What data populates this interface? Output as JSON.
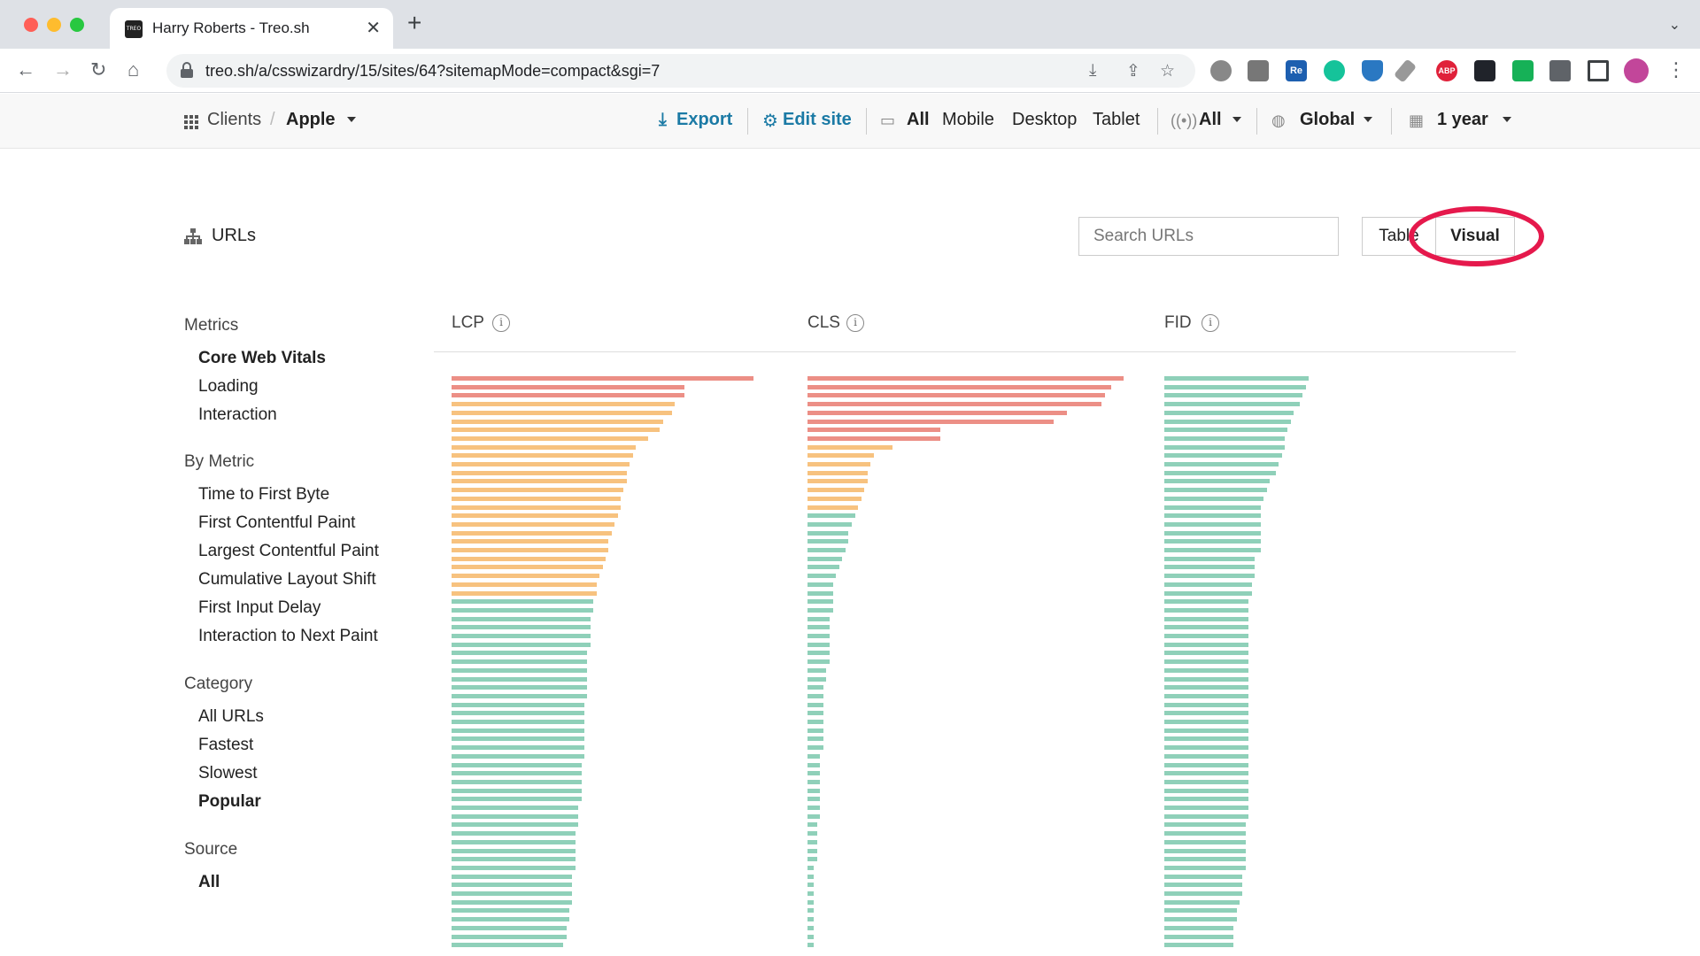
{
  "browser": {
    "tab_title": "Harry Roberts - Treo.sh",
    "favicon_text": "TREO",
    "url": "treo.sh/a/csswizardry/15/sites/64?sitemapMode=compact&sgi=7",
    "extensions": [
      "settings-ext",
      "camera-ext",
      "re-ext",
      "grammarly-ext",
      "shield-ext",
      "pin-ext",
      "adblock-ext",
      "react-ext",
      "green-ext",
      "puzzle-ext",
      "sidepanel-ext",
      "avatar"
    ],
    "extension_labels": {
      "re": "Re",
      "abp": "ABP"
    }
  },
  "header": {
    "clients": "Clients",
    "separator": "/",
    "client_name": "Apple",
    "export": "Export",
    "edit_site": "Edit site",
    "devices": [
      "All",
      "Mobile",
      "Desktop",
      "Tablet"
    ],
    "connection": "All",
    "region": "Global",
    "period": "1 year"
  },
  "urls": {
    "title": "URLs",
    "search_placeholder": "Search URLs",
    "toggle": [
      "Table",
      "Visual"
    ],
    "active_toggle": "Visual"
  },
  "sidebar": {
    "groups": [
      {
        "heading": "Metrics",
        "items": [
          {
            "label": "Core Web Vitals",
            "active": true
          },
          {
            "label": "Loading"
          },
          {
            "label": "Interaction"
          }
        ]
      },
      {
        "heading": "By Metric",
        "items": [
          {
            "label": "Time to First Byte"
          },
          {
            "label": "First Contentful Paint"
          },
          {
            "label": "Largest Contentful Paint"
          },
          {
            "label": "Cumulative Layout Shift"
          },
          {
            "label": "First Input Delay"
          },
          {
            "label": "Interaction to Next Paint"
          }
        ]
      },
      {
        "heading": "Category",
        "items": [
          {
            "label": "All URLs"
          },
          {
            "label": "Fastest"
          },
          {
            "label": "Slowest"
          },
          {
            "label": "Popular",
            "active": true
          }
        ]
      },
      {
        "heading": "Source",
        "items": [
          {
            "label": "All",
            "active": true
          }
        ]
      }
    ]
  },
  "colors": {
    "poor": "#ec8f86",
    "needs_improvement": "#f7c27f",
    "good": "#8fd0b9",
    "link": "#1b7aa5",
    "highlight": "#e5194c"
  },
  "chart_data": [
    {
      "type": "bar",
      "title": "LCP",
      "orientation": "horizontal",
      "scale": "relative",
      "statuses": [
        "poor",
        "poor",
        "poor",
        "ni",
        "ni",
        "ni",
        "ni",
        "ni",
        "ni",
        "ni",
        "ni",
        "ni",
        "ni",
        "ni",
        "ni",
        "ni",
        "ni",
        "ni",
        "ni",
        "ni",
        "ni",
        "ni",
        "ni",
        "ni",
        "ni",
        "ni",
        "good",
        "good",
        "good",
        "good",
        "good",
        "good",
        "good",
        "good",
        "good",
        "good",
        "good",
        "good",
        "good",
        "good",
        "good",
        "good",
        "good",
        "good",
        "good",
        "good",
        "good",
        "good",
        "good",
        "good",
        "good",
        "good",
        "good",
        "good",
        "good",
        "good",
        "good",
        "good",
        "good",
        "good",
        "good",
        "good",
        "good",
        "good",
        "good",
        "good",
        "good"
      ],
      "values": [
        100,
        77,
        77,
        74,
        73,
        70,
        69,
        65,
        61,
        60,
        59,
        58,
        58,
        57,
        56,
        56,
        55,
        54,
        53,
        52,
        52,
        51,
        50,
        49,
        48,
        48,
        47,
        47,
        46,
        46,
        46,
        46,
        45,
        45,
        45,
        45,
        45,
        45,
        44,
        44,
        44,
        44,
        44,
        44,
        44,
        43,
        43,
        43,
        43,
        43,
        42,
        42,
        42,
        41,
        41,
        41,
        41,
        41,
        40,
        40,
        40,
        40,
        39,
        39,
        38,
        38,
        37
      ]
    },
    {
      "type": "bar",
      "title": "CLS",
      "orientation": "horizontal",
      "scale": "relative",
      "statuses": [
        "poor",
        "poor",
        "poor",
        "poor",
        "poor",
        "poor",
        "poor",
        "poor",
        "ni",
        "ni",
        "ni",
        "ni",
        "ni",
        "ni",
        "ni",
        "ni",
        "good",
        "good",
        "good",
        "good",
        "good",
        "good",
        "good",
        "good",
        "good",
        "good",
        "good",
        "good",
        "good",
        "good",
        "good",
        "good",
        "good",
        "good",
        "good",
        "good",
        "good",
        "good",
        "good",
        "good",
        "good",
        "good",
        "good",
        "good",
        "good",
        "good",
        "good",
        "good",
        "good",
        "good",
        "good",
        "good",
        "good",
        "good",
        "good",
        "good",
        "good",
        "good",
        "good",
        "good",
        "good",
        "good",
        "good",
        "good",
        "good",
        "good",
        "good"
      ],
      "values": [
        100,
        96,
        94,
        93,
        82,
        78,
        42,
        42,
        27,
        21,
        20,
        19,
        19,
        18,
        17,
        16,
        15,
        14,
        13,
        13,
        12,
        11,
        10,
        9,
        8,
        8,
        8,
        8,
        7,
        7,
        7,
        7,
        7,
        7,
        6,
        6,
        5,
        5,
        5,
        5,
        5,
        5,
        5,
        5,
        4,
        4,
        4,
        4,
        4,
        4,
        4,
        4,
        3,
        3,
        3,
        3,
        3,
        2,
        2,
        2,
        2,
        2,
        2,
        2,
        2,
        2,
        2
      ]
    },
    {
      "type": "bar",
      "title": "FID",
      "orientation": "horizontal",
      "scale": "relative",
      "statuses": [
        "good",
        "good",
        "good",
        "good",
        "good",
        "good",
        "good",
        "good",
        "good",
        "good",
        "good",
        "good",
        "good",
        "good",
        "good",
        "good",
        "good",
        "good",
        "good",
        "good",
        "good",
        "good",
        "good",
        "good",
        "good",
        "good",
        "good",
        "good",
        "good",
        "good",
        "good",
        "good",
        "good",
        "good",
        "good",
        "good",
        "good",
        "good",
        "good",
        "good",
        "good",
        "good",
        "good",
        "good",
        "good",
        "good",
        "good",
        "good",
        "good",
        "good",
        "good",
        "good",
        "good",
        "good",
        "good",
        "good",
        "good",
        "good",
        "good",
        "good",
        "good",
        "good",
        "good",
        "good",
        "good",
        "good",
        "good"
      ],
      "values": [
        48,
        47,
        46,
        45,
        43,
        42,
        41,
        40,
        40,
        39,
        38,
        37,
        35,
        34,
        33,
        32,
        32,
        32,
        32,
        32,
        32,
        30,
        30,
        30,
        29,
        29,
        28,
        28,
        28,
        28,
        28,
        28,
        28,
        28,
        28,
        28,
        28,
        28,
        28,
        28,
        28,
        28,
        28,
        28,
        28,
        28,
        28,
        28,
        28,
        28,
        28,
        28,
        27,
        27,
        27,
        27,
        27,
        27,
        26,
        26,
        26,
        25,
        24,
        24,
        23,
        23,
        23
      ]
    }
  ]
}
